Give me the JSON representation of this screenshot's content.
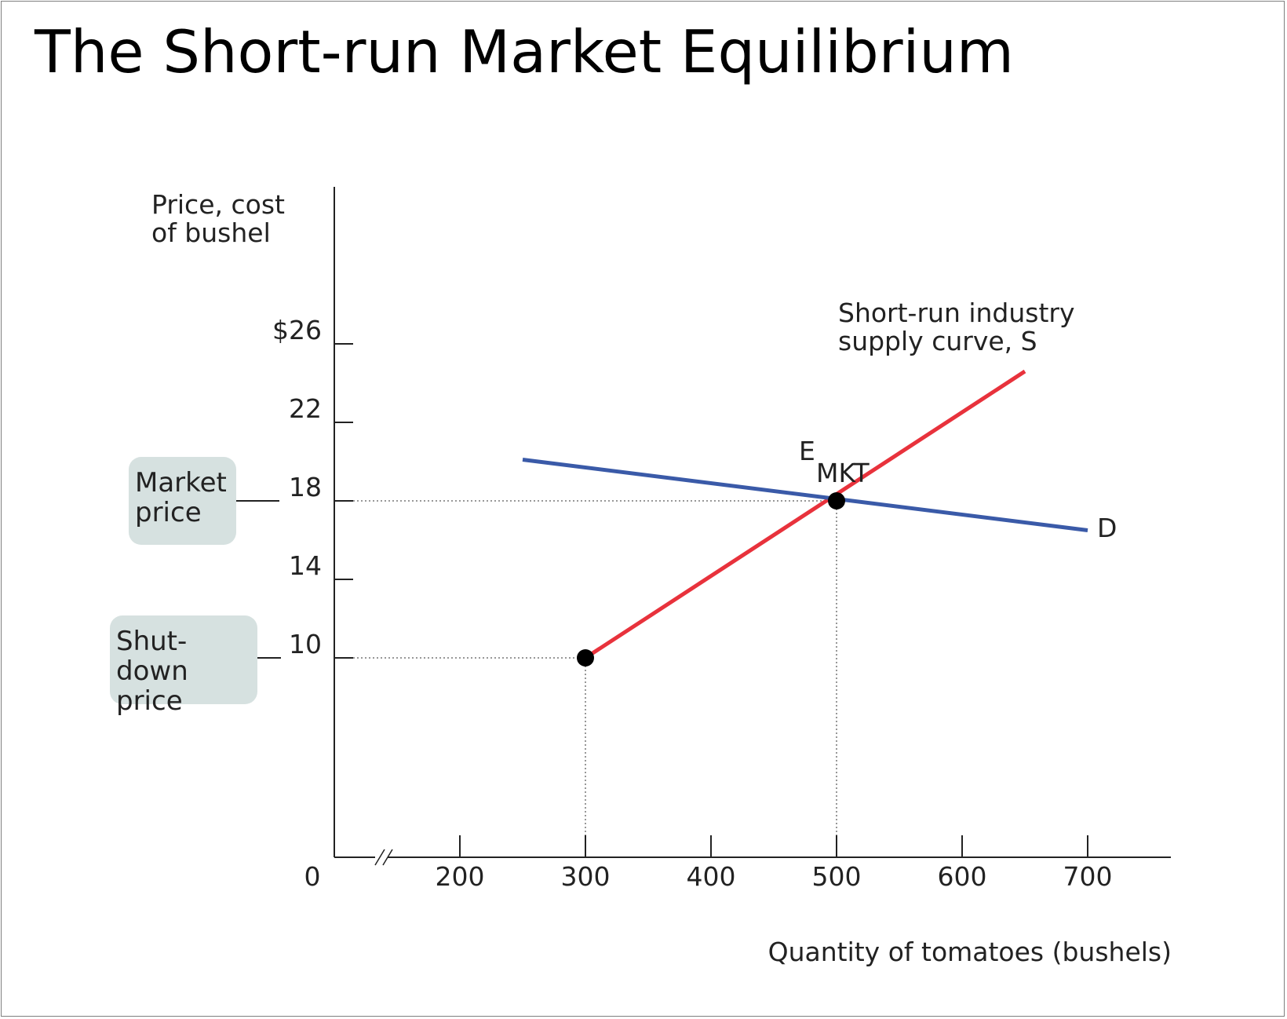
{
  "title": "The Short-run Market Equilibrium",
  "chart_data": {
    "type": "line",
    "ylabel": "Price, cost\nof bushel",
    "xlabel": "Quantity of tomatoes (bushels)",
    "origin_label": "0",
    "xlim": [
      150,
      765
    ],
    "ylim": [
      0,
      36
    ],
    "x_ticks": [
      {
        "value": 200,
        "label": "200"
      },
      {
        "value": 300,
        "label": "300"
      },
      {
        "value": 400,
        "label": "400"
      },
      {
        "value": 500,
        "label": "500"
      },
      {
        "value": 600,
        "label": "600"
      },
      {
        "value": 700,
        "label": "700"
      }
    ],
    "y_ticks": [
      {
        "value": 10,
        "label": "10"
      },
      {
        "value": 14,
        "label": "14"
      },
      {
        "value": 18,
        "label": "18"
      },
      {
        "value": 22,
        "label": "22"
      },
      {
        "value": 26,
        "label": "$26"
      }
    ],
    "series": [
      {
        "name": "Short-run industry\nsupply curve, S",
        "color": "#e8323c",
        "points": [
          [
            300,
            10
          ],
          [
            650,
            24.6
          ]
        ]
      },
      {
        "name": "D",
        "color": "#3a5aa8",
        "points": [
          [
            250,
            20.1
          ],
          [
            700,
            16.5
          ]
        ]
      }
    ],
    "points": [
      {
        "name": "equilibrium",
        "x": 500,
        "y": 18,
        "label_main": "E",
        "label_sub": "MKT"
      },
      {
        "name": "shutdown",
        "x": 300,
        "y": 10
      }
    ],
    "reference_lines": [
      {
        "name": "market-price",
        "x": 500,
        "y": 18
      },
      {
        "name": "shutdown-price",
        "x": 300,
        "y": 10
      }
    ],
    "callouts": [
      {
        "name": "market-price",
        "text": "Market\nprice",
        "y": 18
      },
      {
        "name": "shutdown-price",
        "text": "Shut-down\nprice",
        "y": 10
      }
    ],
    "axis_break": true
  }
}
